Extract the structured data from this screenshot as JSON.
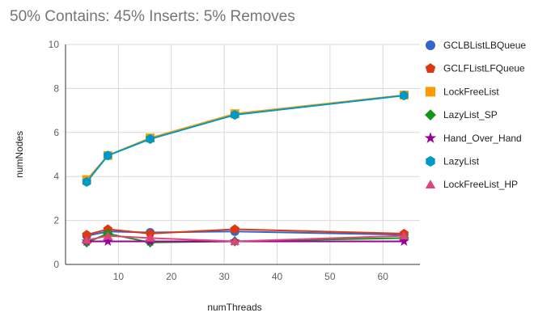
{
  "chart_data": {
    "type": "line",
    "title": "50% Contains: 45% Inserts: 5% Removes",
    "xlabel": "numThreads",
    "ylabel": "numNodes",
    "xlim": [
      0,
      67
    ],
    "ylim": [
      0,
      10
    ],
    "x_ticks": [
      10,
      20,
      30,
      40,
      50,
      60
    ],
    "y_ticks": [
      0,
      2,
      4,
      6,
      8,
      10
    ],
    "grid": true,
    "legend_position": "right",
    "x": [
      4,
      8,
      16,
      32,
      64
    ],
    "series": [
      {
        "name": "GCLBListLBQueue",
        "color": "#3366cc",
        "marker": "circle",
        "values": [
          1.3,
          1.5,
          1.45,
          1.5,
          1.35
        ]
      },
      {
        "name": "GCLFListLFQueue",
        "color": "#dc3912",
        "marker": "pentagon",
        "values": [
          1.35,
          1.6,
          1.4,
          1.6,
          1.4
        ]
      },
      {
        "name": "LockFreeList",
        "color": "#ff9900",
        "marker": "square",
        "values": [
          3.85,
          4.95,
          5.75,
          6.85,
          7.7
        ]
      },
      {
        "name": "LazyList_SP",
        "color": "#109618",
        "marker": "diamond",
        "values": [
          1.0,
          1.4,
          1.0,
          1.05,
          1.2
        ]
      },
      {
        "name": "Hand_Over_Hand",
        "color": "#990099",
        "marker": "star",
        "values": [
          1.05,
          1.05,
          1.05,
          1.05,
          1.05
        ]
      },
      {
        "name": "LazyList",
        "color": "#0099c6",
        "marker": "hexagon",
        "values": [
          3.75,
          4.95,
          5.7,
          6.8,
          7.68
        ]
      },
      {
        "name": "LockFreeList_HP",
        "color": "#dd4477",
        "marker": "triangle",
        "values": [
          1.1,
          1.3,
          1.2,
          1.05,
          1.3
        ]
      }
    ]
  }
}
